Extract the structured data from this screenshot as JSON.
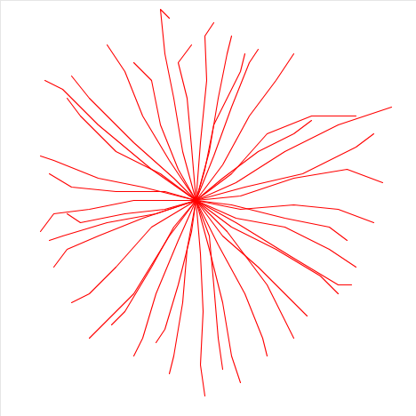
{
  "chart_data": {
    "type": "line",
    "color": "#ff0000",
    "tick_labels": false,
    "xlim": [
      -220,
      248
    ],
    "ylim": [
      -243,
      225
    ],
    "series": [
      {
        "x": [
          0,
          -15,
          -25,
          -35,
          -40,
          -30
        ],
        "values": [
          0,
          55,
          115,
          165,
          215,
          205
        ]
      },
      {
        "x": [
          0,
          5,
          12,
          10,
          20
        ],
        "values": [
          0,
          65,
          135,
          185,
          200
        ]
      },
      {
        "x": [
          0,
          -30,
          -60,
          -80,
          -100
        ],
        "values": [
          0,
          45,
          95,
          145,
          175
        ]
      },
      {
        "x": [
          0,
          -50,
          -110,
          -150,
          -170
        ],
        "values": [
          0,
          35,
          85,
          125,
          135
        ]
      },
      {
        "x": [
          0,
          -40,
          -90,
          -130,
          -145
        ],
        "values": [
          0,
          30,
          55,
          95,
          115
        ]
      },
      {
        "x": [
          0,
          -60,
          -110,
          -160,
          -175
        ],
        "values": [
          0,
          15,
          25,
          45,
          50
        ]
      },
      {
        "x": [
          0,
          -70,
          -120,
          -160,
          -175
        ],
        "values": [
          0,
          0,
          -10,
          -15,
          -35
        ]
      },
      {
        "x": [
          0,
          -60,
          -110,
          -145,
          -160
        ],
        "values": [
          0,
          -20,
          -40,
          -55,
          -75
        ]
      },
      {
        "x": [
          0,
          -50,
          -90,
          -120,
          -140
        ],
        "values": [
          0,
          -30,
          -75,
          -105,
          -115
        ]
      },
      {
        "x": [
          0,
          -30,
          -70,
          -100,
          -120
        ],
        "values": [
          0,
          -40,
          -105,
          -135,
          -155
        ]
      },
      {
        "x": [
          0,
          -20,
          -45,
          -60,
          -70
        ],
        "values": [
          0,
          -45,
          -105,
          -155,
          -175
        ]
      },
      {
        "x": [
          0,
          -10,
          -15,
          -25,
          -30
        ],
        "values": [
          0,
          -55,
          -115,
          -175,
          -195
        ]
      },
      {
        "x": [
          0,
          5,
          8,
          5,
          10
        ],
        "values": [
          0,
          -60,
          -125,
          -185,
          -220
        ]
      },
      {
        "x": [
          0,
          15,
          30,
          40,
          50
        ],
        "values": [
          0,
          -55,
          -115,
          -175,
          -205
        ]
      },
      {
        "x": [
          0,
          25,
          55,
          75,
          80
        ],
        "values": [
          0,
          -50,
          -105,
          -155,
          -175
        ]
      },
      {
        "x": [
          0,
          30,
          70,
          110,
          125
        ],
        "values": [
          0,
          -40,
          -75,
          -115,
          -130
        ]
      },
      {
        "x": [
          0,
          40,
          90,
          140,
          160
        ],
        "values": [
          0,
          -30,
          -55,
          -85,
          -105
        ]
      },
      {
        "x": [
          0,
          45,
          100,
          150,
          180
        ],
        "values": [
          0,
          -20,
          -30,
          -55,
          -75
        ]
      },
      {
        "x": [
          0,
          50,
          110,
          160,
          200
        ],
        "values": [
          0,
          -10,
          -5,
          -10,
          -25
        ]
      },
      {
        "x": [
          0,
          50,
          110,
          170,
          210
        ],
        "values": [
          0,
          5,
          25,
          35,
          20
        ]
      },
      {
        "x": [
          0,
          45,
          100,
          160,
          220
        ],
        "values": [
          0,
          20,
          55,
          85,
          105
        ]
      },
      {
        "x": [
          0,
          40,
          80,
          130,
          180
        ],
        "values": [
          0,
          30,
          75,
          95,
          95
        ]
      },
      {
        "x": [
          0,
          30,
          60,
          90,
          110
        ],
        "values": [
          0,
          40,
          95,
          135,
          165
        ]
      },
      {
        "x": [
          0,
          20,
          40,
          60,
          70
        ],
        "values": [
          0,
          50,
          105,
          155,
          170
        ]
      },
      {
        "x": [
          0,
          15,
          25,
          35,
          40
        ],
        "values": [
          0,
          55,
          115,
          165,
          185
        ]
      },
      {
        "x": [
          0,
          -5,
          -10,
          -20,
          -5
        ],
        "values": [
          0,
          60,
          115,
          155,
          175
        ]
      },
      {
        "x": [
          0,
          -25,
          -70,
          -120,
          -140
        ],
        "values": [
          0,
          25,
          65,
          115,
          140
        ]
      },
      {
        "x": [
          0,
          -35,
          -90,
          -140,
          -165
        ],
        "values": [
          0,
          10,
          10,
          15,
          30
        ]
      },
      {
        "x": [
          0,
          -45,
          -100,
          -150,
          -165
        ],
        "values": [
          0,
          -15,
          -25,
          -40,
          -45
        ]
      },
      {
        "x": [
          0,
          -25,
          -50,
          -80,
          -95
        ],
        "values": [
          0,
          -30,
          -75,
          -125,
          -140
        ]
      },
      {
        "x": [
          0,
          -5,
          -20,
          -35,
          -45
        ],
        "values": [
          0,
          -35,
          -95,
          -145,
          -160
        ]
      },
      {
        "x": [
          0,
          15,
          20,
          25,
          30
        ],
        "values": [
          0,
          -40,
          -95,
          -155,
          -190
        ]
      },
      {
        "x": [
          0,
          35,
          80,
          100,
          110
        ],
        "values": [
          0,
          -35,
          -95,
          -135,
          -155
        ]
      },
      {
        "x": [
          0,
          45,
          110,
          160,
          175
        ],
        "values": [
          0,
          -25,
          -65,
          -95,
          -95
        ]
      },
      {
        "x": [
          0,
          40,
          100,
          150,
          170
        ],
        "values": [
          0,
          -5,
          -20,
          -30,
          -45
        ]
      },
      {
        "x": [
          0,
          55,
          120,
          180,
          200
        ],
        "values": [
          0,
          15,
          30,
          60,
          75
        ]
      },
      {
        "x": [
          0,
          30,
          70,
          110,
          130
        ],
        "values": [
          0,
          25,
          55,
          75,
          90
        ]
      },
      {
        "x": [
          0,
          10,
          20,
          50,
          55
        ],
        "values": [
          0,
          35,
          85,
          145,
          165
        ]
      },
      {
        "x": [
          0,
          -20,
          -40,
          -50,
          -70
        ],
        "values": [
          0,
          35,
          85,
          135,
          155
        ]
      },
      {
        "x": [
          0,
          -35,
          -80,
          -130,
          -145
        ],
        "values": [
          0,
          -10,
          -15,
          -25,
          -15
        ]
      }
    ]
  }
}
